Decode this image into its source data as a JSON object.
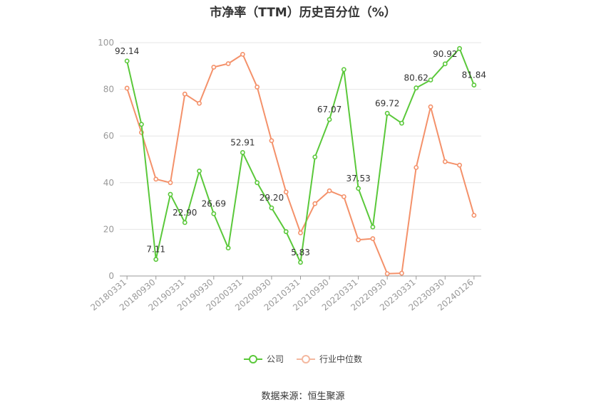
{
  "title": "市净率（TTM）历史百分位（%）",
  "source": "数据来源：恒生聚源",
  "chart_data": {
    "type": "line",
    "x": [
      "20180331",
      "",
      "20180930",
      "",
      "20190331",
      "",
      "20190930",
      "",
      "20200331",
      "",
      "20200930",
      "",
      "20210331",
      "",
      "20210930",
      "",
      "20220331",
      "",
      "20220930",
      "",
      "20230331",
      "",
      "20230930",
      "",
      "20240126"
    ],
    "x_tick_labels": [
      "20180331",
      "20180930",
      "20190331",
      "20190930",
      "20200331",
      "20200930",
      "20210331",
      "20210930",
      "20220331",
      "20220930",
      "20230331",
      "20230930",
      "20240126"
    ],
    "y_ticks": [
      0,
      20,
      40,
      60,
      80,
      100
    ],
    "ylim": [
      0,
      100
    ],
    "grid": true,
    "legend_position": "bottom",
    "series": [
      {
        "name": "公司",
        "color": "#5ac83a",
        "values": [
          92.14,
          65,
          7.11,
          35,
          22.9,
          45,
          26.69,
          12,
          52.91,
          40,
          29.2,
          19,
          5.83,
          51,
          67.07,
          88.5,
          37.53,
          21,
          69.72,
          65.5,
          80.62,
          84,
          90.92,
          97.5,
          81.84
        ],
        "labels": [
          "92.14",
          "",
          "7.11",
          "",
          "22.90",
          "",
          "26.69",
          "",
          "52.91",
          "",
          "29.20",
          "",
          "5.83",
          "",
          "67.07",
          "",
          "37.53",
          "",
          "69.72",
          "",
          "80.62",
          "",
          "90.92",
          "",
          "81.84"
        ]
      },
      {
        "name": "行业中位数",
        "color": "#f4916a",
        "values": [
          80.5,
          61.5,
          41.5,
          40,
          78,
          74,
          89.5,
          91,
          95,
          81,
          58,
          36,
          18.5,
          31,
          36.5,
          34,
          15.5,
          16,
          1,
          1.2,
          46.5,
          72.5,
          49,
          47.5,
          26
        ]
      }
    ]
  }
}
